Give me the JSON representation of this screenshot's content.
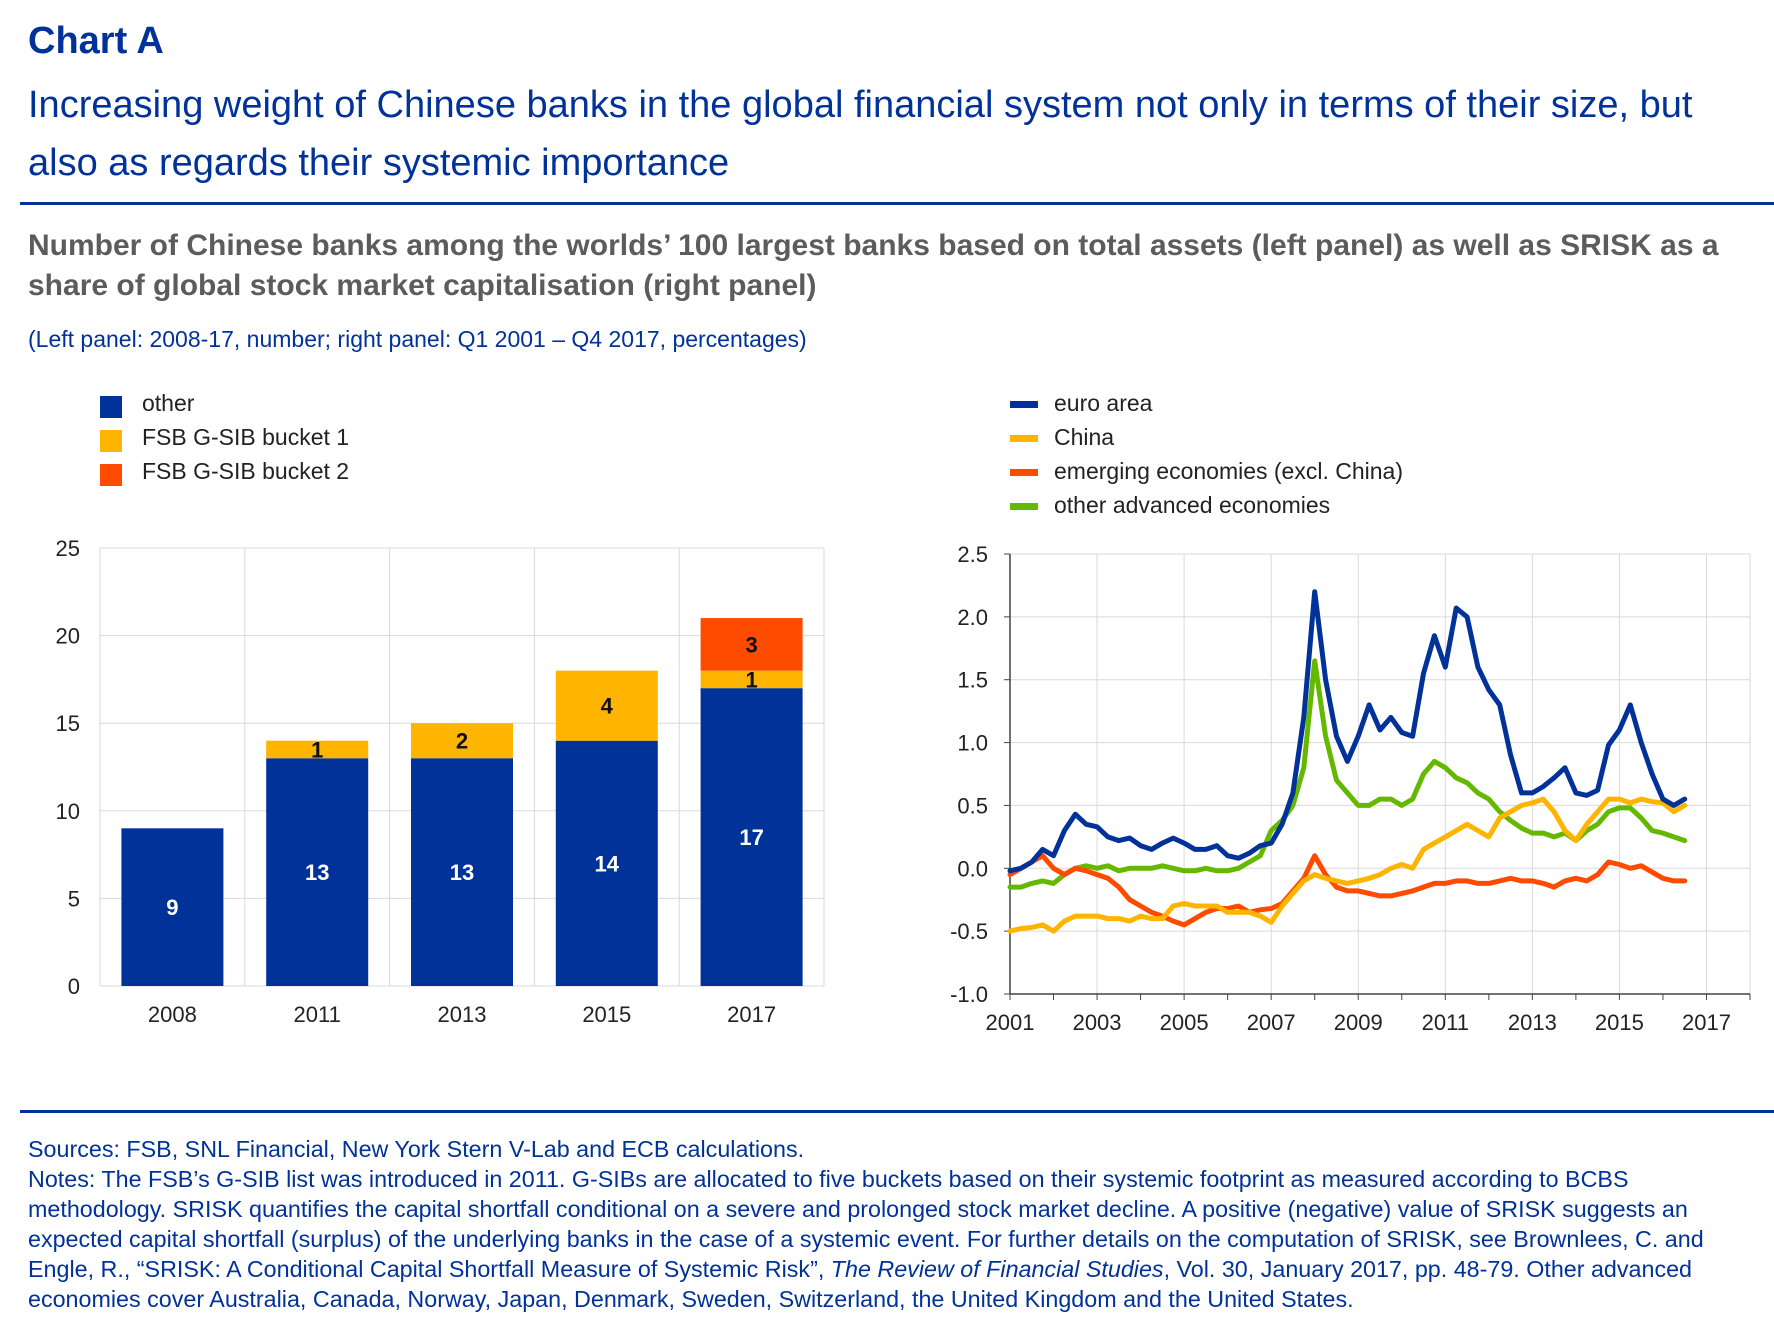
{
  "header": {
    "chart_label": "Chart A",
    "headline": "Increasing weight of Chinese banks in the global financial system not only in terms of their size, but also as regards their systemic importance"
  },
  "subtitle": "Number of Chinese banks among the worlds’ 100 largest banks based on total assets (left panel) as well as SRISK as a share of global stock market capitalisation (right panel)",
  "units_note": "(Left panel: 2008-17, number; right panel: Q1 2001 – Q4 2017, percentages)",
  "colors": {
    "brand_blue": "#003299",
    "other": "#003299",
    "bucket1": "#FFB400",
    "bucket2": "#FF4B00",
    "euro_area": "#003299",
    "china": "#FFB400",
    "emerging": "#FF4B00",
    "other_advanced": "#65B800",
    "grid": "#d9d9d9",
    "axis_text": "#222222"
  },
  "chart_data": [
    {
      "type": "bar",
      "stacked": true,
      "title": "Number of Chinese banks among the worlds’ 100 largest banks based on total assets",
      "categories": [
        "2008",
        "2011",
        "2013",
        "2015",
        "2017"
      ],
      "series": [
        {
          "name": "other",
          "values": [
            9,
            13,
            13,
            14,
            17
          ],
          "color_key": "other"
        },
        {
          "name": "FSB G-SIB bucket 1",
          "values": [
            0,
            1,
            2,
            4,
            1
          ],
          "color_key": "bucket1"
        },
        {
          "name": "FSB G-SIB bucket 2",
          "values": [
            0,
            0,
            0,
            0,
            3
          ],
          "color_key": "bucket2"
        }
      ],
      "ylim": [
        0,
        25
      ],
      "yticks": [
        "0",
        "5",
        "10",
        "15",
        "20",
        "25"
      ],
      "grid": true,
      "legend_position": "top-left"
    },
    {
      "type": "line",
      "title": "SRISK as a share of global stock market capitalisation",
      "x_start": 2001.0,
      "x_step": 0.25,
      "xlim": [
        2001,
        2018
      ],
      "xticks": [
        "2001",
        "2003",
        "2005",
        "2007",
        "2009",
        "2011",
        "2013",
        "2015",
        "2017"
      ],
      "ylim": [
        -1.0,
        2.5
      ],
      "yticks": [
        "-1.0",
        "-0.5",
        "0.0",
        "0.5",
        "1.0",
        "1.5",
        "2.0",
        "2.5"
      ],
      "grid": true,
      "legend_position": "top-left",
      "series": [
        {
          "name": "euro area",
          "color_key": "euro_area",
          "values": [
            -0.02,
            0.0,
            0.05,
            0.15,
            0.1,
            0.3,
            0.43,
            0.35,
            0.33,
            0.25,
            0.22,
            0.24,
            0.18,
            0.15,
            0.2,
            0.24,
            0.2,
            0.15,
            0.15,
            0.18,
            0.1,
            0.08,
            0.12,
            0.18,
            0.2,
            0.35,
            0.6,
            1.2,
            2.2,
            1.5,
            1.05,
            0.85,
            1.05,
            1.3,
            1.1,
            1.2,
            1.08,
            1.05,
            1.55,
            1.85,
            1.6,
            2.07,
            2.0,
            1.6,
            1.42,
            1.3,
            0.9,
            0.6,
            0.6,
            0.65,
            0.72,
            0.8,
            0.6,
            0.58,
            0.62,
            0.98,
            1.1,
            1.3,
            1.0,
            0.75,
            0.55,
            0.5,
            0.55
          ]
        },
        {
          "name": "China",
          "color_key": "china",
          "values": [
            -0.5,
            -0.48,
            -0.47,
            -0.45,
            -0.5,
            -0.42,
            -0.38,
            -0.38,
            -0.38,
            -0.4,
            -0.4,
            -0.42,
            -0.38,
            -0.4,
            -0.4,
            -0.3,
            -0.28,
            -0.3,
            -0.3,
            -0.3,
            -0.35,
            -0.35,
            -0.35,
            -0.38,
            -0.43,
            -0.3,
            -0.2,
            -0.1,
            -0.05,
            -0.08,
            -0.1,
            -0.12,
            -0.1,
            -0.08,
            -0.05,
            0.0,
            0.03,
            0.0,
            0.15,
            0.2,
            0.25,
            0.3,
            0.35,
            0.3,
            0.25,
            0.4,
            0.45,
            0.5,
            0.52,
            0.55,
            0.45,
            0.3,
            0.22,
            0.35,
            0.45,
            0.55,
            0.55,
            0.52,
            0.55,
            0.53,
            0.52,
            0.45,
            0.5
          ]
        },
        {
          "name": "emerging economies (excl. China)",
          "color_key": "emerging",
          "values": [
            -0.05,
            0.0,
            0.05,
            0.1,
            0.0,
            -0.05,
            0.0,
            -0.02,
            -0.05,
            -0.08,
            -0.15,
            -0.25,
            -0.3,
            -0.35,
            -0.38,
            -0.42,
            -0.45,
            -0.4,
            -0.35,
            -0.32,
            -0.32,
            -0.3,
            -0.35,
            -0.33,
            -0.32,
            -0.28,
            -0.18,
            -0.08,
            0.1,
            -0.05,
            -0.15,
            -0.18,
            -0.18,
            -0.2,
            -0.22,
            -0.22,
            -0.2,
            -0.18,
            -0.15,
            -0.12,
            -0.12,
            -0.1,
            -0.1,
            -0.12,
            -0.12,
            -0.1,
            -0.08,
            -0.1,
            -0.1,
            -0.12,
            -0.15,
            -0.1,
            -0.08,
            -0.1,
            -0.05,
            0.05,
            0.03,
            0.0,
            0.02,
            -0.03,
            -0.08,
            -0.1,
            -0.1
          ]
        },
        {
          "name": "other advanced economies",
          "color_key": "other_advanced",
          "values": [
            -0.15,
            -0.15,
            -0.12,
            -0.1,
            -0.12,
            -0.05,
            0.0,
            0.02,
            0.0,
            0.02,
            -0.02,
            0.0,
            0.0,
            0.0,
            0.02,
            0.0,
            -0.02,
            -0.02,
            0.0,
            -0.02,
            -0.02,
            0.0,
            0.05,
            0.1,
            0.3,
            0.38,
            0.5,
            0.8,
            1.65,
            1.05,
            0.7,
            0.6,
            0.5,
            0.5,
            0.55,
            0.55,
            0.5,
            0.55,
            0.75,
            0.85,
            0.8,
            0.72,
            0.68,
            0.6,
            0.55,
            0.45,
            0.38,
            0.32,
            0.28,
            0.28,
            0.25,
            0.28,
            0.22,
            0.3,
            0.35,
            0.45,
            0.48,
            0.48,
            0.4,
            0.3,
            0.28,
            0.25,
            0.22
          ]
        }
      ]
    }
  ],
  "legend_left": [
    {
      "label": "other",
      "color_key": "other"
    },
    {
      "label": "FSB G-SIB bucket 1",
      "color_key": "bucket1"
    },
    {
      "label": "FSB G-SIB bucket 2",
      "color_key": "bucket2"
    }
  ],
  "legend_right": [
    {
      "label": "euro area",
      "color_key": "euro_area"
    },
    {
      "label": "China",
      "color_key": "china"
    },
    {
      "label": "emerging economies (excl. China)",
      "color_key": "emerging"
    },
    {
      "label": "other advanced economies",
      "color_key": "other_advanced"
    }
  ],
  "footer": {
    "sources": "Sources: FSB, SNL Financial, New York Stern V-Lab and ECB calculations.",
    "notes_part1": "Notes: The FSB’s G-SIB list was introduced in 2011. G-SIBs are allocated to five buckets based on their systemic footprint as measured according to BCBS methodology. SRISK quantifies the capital shortfall conditional on a severe and prolonged stock market decline. A positive (negative) value of SRISK suggests an expected capital shortfall (surplus) of the underlying banks in the case of a systemic event. For further details on the computation of SRISK, see Brownlees, C. and Engle, R., “SRISK: A Conditional Capital Shortfall Measure of Systemic Risk”, ",
    "journal": "The Review of Financial Studies",
    "notes_part2": ", Vol. 30, January 2017, pp. 48-79. Other advanced economies cover Australia, Canada, Norway, Japan, Denmark, Sweden, Switzerland, the United Kingdom and the United States."
  }
}
